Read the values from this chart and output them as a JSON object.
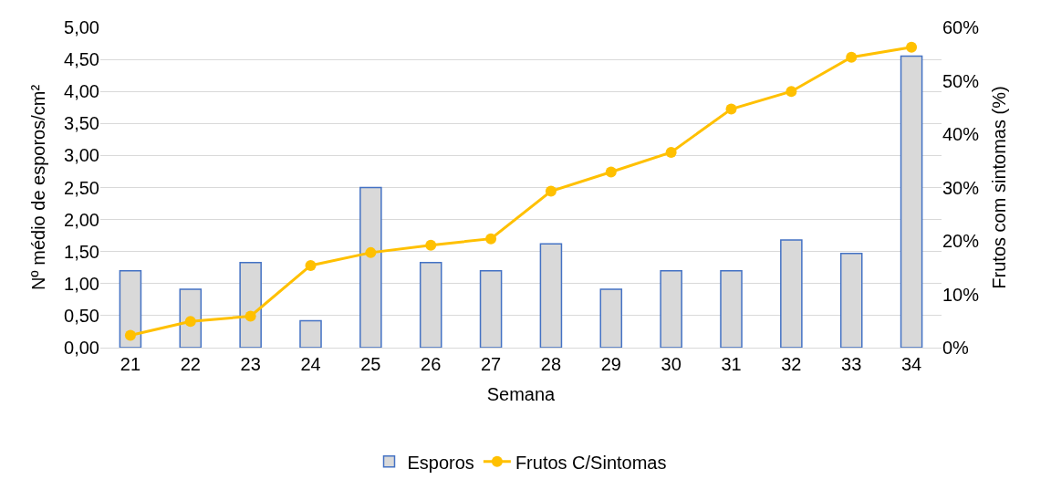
{
  "chart_data": {
    "type": "bar",
    "xlabel": "Semana",
    "ylabel": "Nº médio de esporos/cm²",
    "y2label": "Frutos com sintomas (%)",
    "categories": [
      "21",
      "22",
      "23",
      "24",
      "25",
      "26",
      "27",
      "28",
      "29",
      "30",
      "31",
      "32",
      "33",
      "34"
    ],
    "series": [
      {
        "name": "Esporos",
        "color": "#d9d9d9",
        "values": [
          1.2,
          0.91,
          1.33,
          0.42,
          2.5,
          1.33,
          1.2,
          1.62,
          0.91,
          1.2,
          1.2,
          1.68,
          1.47,
          4.55
        ]
      },
      {
        "name": "Frutos C/Sintomas",
        "type": "line",
        "axis": "y2",
        "color": "#ffc000",
        "marker": "circle",
        "values": [
          2.3,
          4.9,
          5.9,
          15.4,
          17.8,
          19.2,
          20.4,
          29.3,
          32.9,
          36.6,
          44.7,
          48.0,
          54.4,
          56.3
        ]
      }
    ],
    "ylim": [
      0,
      5
    ],
    "yticks": [
      {
        "value": 0,
        "label": "0,00"
      },
      {
        "value": 0.5,
        "label": "0,50"
      },
      {
        "value": 1,
        "label": "1,00"
      },
      {
        "value": 1.5,
        "label": "1,50"
      },
      {
        "value": 2,
        "label": "2,00"
      },
      {
        "value": 2.5,
        "label": "2,50"
      },
      {
        "value": 3,
        "label": "3,00"
      },
      {
        "value": 3.5,
        "label": "3,50"
      },
      {
        "value": 4,
        "label": "4,00"
      },
      {
        "value": 4.5,
        "label": "4,50"
      },
      {
        "value": 5,
        "label": "5,00"
      }
    ],
    "y2lim": [
      0,
      60
    ],
    "y2ticks": [
      {
        "value": 0,
        "label": "0%"
      },
      {
        "value": 10,
        "label": "10%"
      },
      {
        "value": 20,
        "label": "20%"
      },
      {
        "value": 30,
        "label": "30%"
      },
      {
        "value": 40,
        "label": "40%"
      },
      {
        "value": 50,
        "label": "50%"
      },
      {
        "value": 60,
        "label": "60%"
      }
    ],
    "grid": "y",
    "legend": "bottom"
  }
}
